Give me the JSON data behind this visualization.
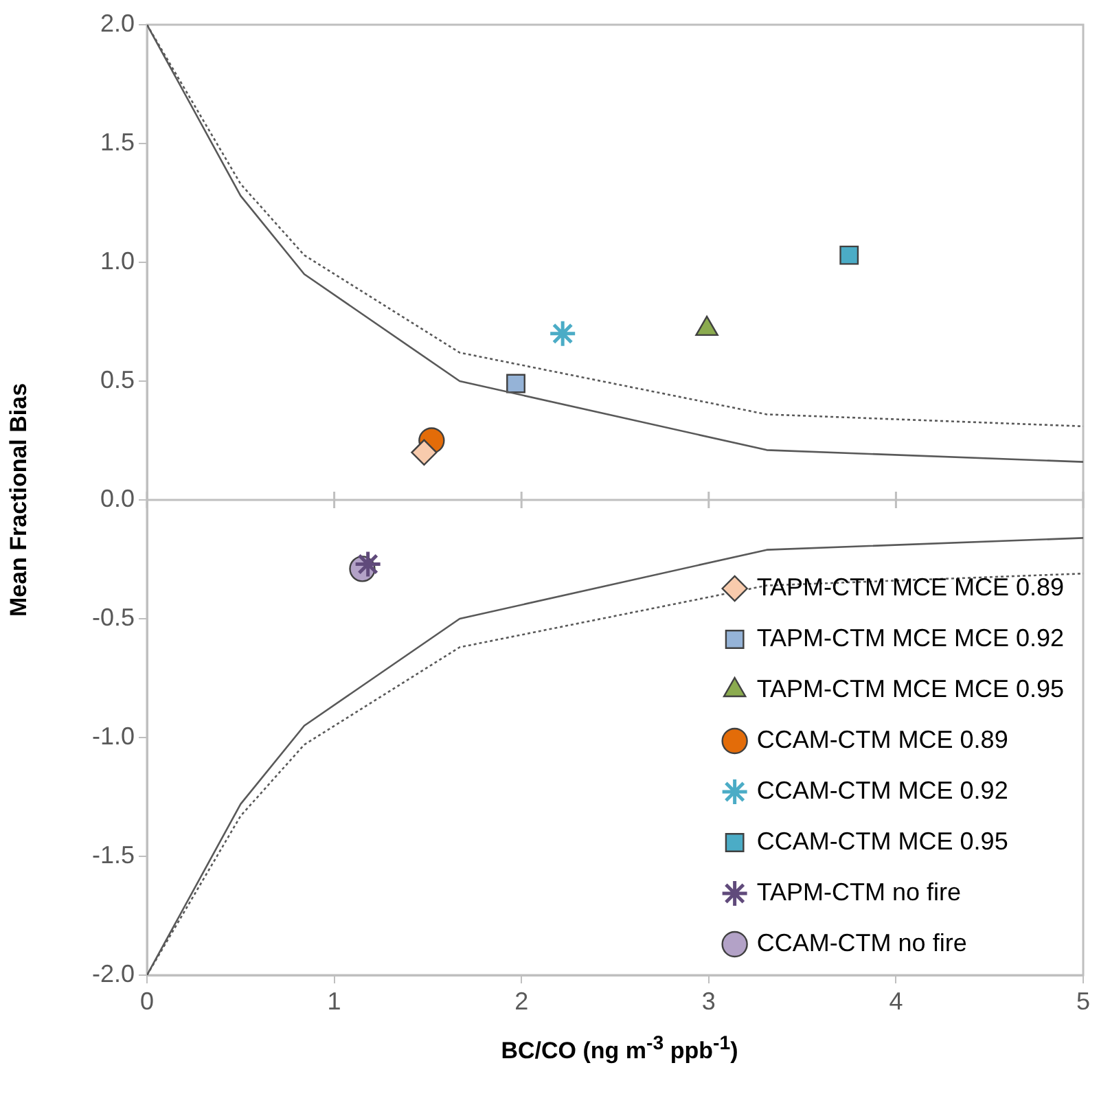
{
  "chart_data": {
    "type": "scatter",
    "xlabel": "BC/CO (ng m$^{-3}$ ppb$^{-1}$)",
    "ylabel": "Mean Fractional Bias",
    "xlim": [
      0,
      5
    ],
    "xticks": [
      0,
      1,
      2,
      3,
      4,
      5
    ],
    "ylim": [
      -2,
      2
    ],
    "yticks": [
      {
        "value": -2,
        "label": "-2.0"
      },
      {
        "value": -1.5,
        "label": "-1.5"
      },
      {
        "value": -1,
        "label": "-1.0"
      },
      {
        "value": -0.5,
        "label": "-0.5"
      },
      {
        "value": 0,
        "label": "0.0"
      },
      {
        "value": 0.5,
        "label": "0.5"
      },
      {
        "value": 1,
        "label": "1.0"
      },
      {
        "value": 1.5,
        "label": "1.5"
      },
      {
        "value": 2,
        "label": "2.0"
      }
    ],
    "grid": false,
    "legend": "bottom right",
    "ref_lines": [
      {
        "axis": "y",
        "value": 0,
        "color": "#bfbfbf"
      }
    ],
    "series": [
      {
        "type": "line",
        "color": "#595959",
        "line_style": "solid",
        "marker": "none",
        "x": [
          0,
          0.5,
          0.84,
          1.67,
          3.31,
          5
        ],
        "values": [
          2,
          1.28,
          0.95,
          0.5,
          0.21,
          0.16
        ]
      },
      {
        "type": "line",
        "color": "#595959",
        "line_style": "dotted",
        "marker": "none",
        "x": [
          0,
          0.5,
          0.84,
          1.67,
          3.31,
          5
        ],
        "values": [
          2,
          1.33,
          1.03,
          0.62,
          0.36,
          0.31
        ]
      },
      {
        "type": "line",
        "color": "#595959",
        "line_style": "solid",
        "marker": "none",
        "x": [
          0,
          0.5,
          0.84,
          1.67,
          3.31,
          5
        ],
        "values": [
          -2,
          -1.28,
          -0.95,
          -0.5,
          -0.21,
          -0.16
        ]
      },
      {
        "type": "line",
        "color": "#595959",
        "line_style": "dotted",
        "marker": "none",
        "x": [
          0,
          0.5,
          0.84,
          1.67,
          3.31,
          5
        ],
        "values": [
          -2,
          -1.33,
          -1.03,
          -0.62,
          -0.36,
          -0.31
        ]
      },
      {
        "name": "TAPM-CTM MCE MCE 0.89",
        "color": "#f8cbad",
        "marker": "diamond",
        "x": [
          1.48
        ],
        "values": [
          0.2
        ]
      },
      {
        "name": "TAPM-CTM MCE MCE 0.92",
        "color": "#95b3d7",
        "marker": "square",
        "x": [
          1.97
        ],
        "values": [
          0.49
        ]
      },
      {
        "name": "TAPM-CTM MCE MCE 0.95",
        "color": "#8bab4f",
        "marker": "triangle",
        "x": [
          2.99
        ],
        "values": [
          0.72
        ]
      },
      {
        "name": "CCAM-CTM MCE 0.89",
        "color": "#e36c09",
        "marker": "circle",
        "x": [
          1.52
        ],
        "values": [
          0.25
        ]
      },
      {
        "name": "CCAM-CTM MCE 0.92",
        "color": "#4bacc6",
        "marker": "cross",
        "x": [
          2.22
        ],
        "values": [
          0.7
        ]
      },
      {
        "name": "CCAM-CTM MCE 0.95",
        "color": "#4bacc6",
        "marker": "square",
        "x": [
          3.75
        ],
        "values": [
          1.03
        ]
      },
      {
        "name": "TAPM-CTM no fire",
        "color": "#604a7b",
        "marker": "cross",
        "x": [
          1.18
        ],
        "values": [
          -0.27
        ]
      },
      {
        "name": "CCAM-CTM no fire",
        "color": "#b3a2c7",
        "marker": "circle",
        "x": [
          1.15
        ],
        "values": [
          -0.29
        ]
      }
    ]
  }
}
